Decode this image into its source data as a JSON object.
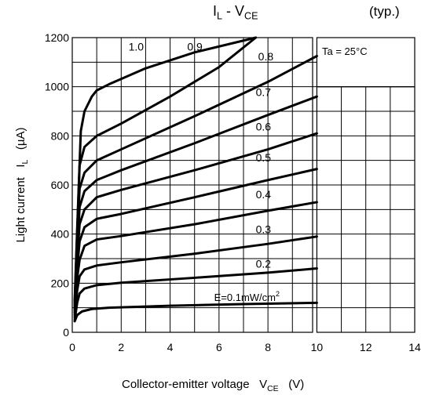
{
  "chart_data": {
    "type": "line",
    "title": "IL - VCE",
    "title_parts": {
      "I": "I",
      "L": "L",
      "sep": " - V",
      "CE": "CE"
    },
    "subtitle": "(typ.)",
    "condition": "Ta = 25°C",
    "xlabel": "Collector-emitter voltage",
    "xlabel_parts": {
      "text": "Collector-emitter voltage",
      "V": "V",
      "CE": "CE",
      "unit": "(V)"
    },
    "ylabel": "Light current",
    "ylabel_parts": {
      "text": "Light current",
      "I": "I",
      "L": "L",
      "unit": "(µA)"
    },
    "xlim": [
      0,
      14
    ],
    "ylim": [
      0,
      1200
    ],
    "x_ticks": [
      "0",
      "2",
      "4",
      "6",
      "8",
      "10",
      "12",
      "14"
    ],
    "y_ticks": [
      "0",
      "200",
      "400",
      "600",
      "800",
      "1000",
      "1200"
    ],
    "grid": true,
    "series": [
      {
        "name": "E=0.1mW/cm2",
        "label": "E=0.1mW/cm",
        "label_sup": "2",
        "x": [
          0.1,
          0.2,
          0.4,
          0.8,
          1.5,
          4,
          7,
          10
        ],
        "y": [
          45,
          70,
          85,
          95,
          100,
          108,
          115,
          120
        ]
      },
      {
        "name": "0.2",
        "label": "0.2",
        "x": [
          0.1,
          0.2,
          0.3,
          0.5,
          1,
          2,
          5,
          8,
          10
        ],
        "y": [
          50,
          120,
          158,
          178,
          192,
          202,
          222,
          243,
          260
        ]
      },
      {
        "name": "0.3",
        "label": "0.3",
        "x": [
          0.1,
          0.2,
          0.3,
          0.5,
          1,
          2,
          5,
          8,
          10
        ],
        "y": [
          60,
          170,
          228,
          256,
          272,
          285,
          320,
          360,
          390
        ]
      },
      {
        "name": "0.4",
        "label": "0.4",
        "x": [
          0.1,
          0.2,
          0.3,
          0.5,
          1,
          2,
          5,
          8,
          10
        ],
        "y": [
          70,
          220,
          295,
          352,
          378,
          392,
          440,
          495,
          530
        ]
      },
      {
        "name": "0.5",
        "label": "0.5",
        "x": [
          0.1,
          0.2,
          0.3,
          0.5,
          1,
          2,
          5,
          8,
          10
        ],
        "y": [
          80,
          260,
          370,
          428,
          462,
          482,
          550,
          620,
          665
        ]
      },
      {
        "name": "0.6",
        "label": "0.6",
        "x": [
          0.1,
          0.2,
          0.3,
          0.5,
          1,
          2,
          5,
          8,
          10
        ],
        "y": [
          90,
          300,
          440,
          500,
          550,
          580,
          660,
          745,
          810
        ]
      },
      {
        "name": "0.7",
        "label": "0.7",
        "x": [
          0.1,
          0.2,
          0.3,
          0.5,
          1,
          2,
          5,
          8,
          10
        ],
        "y": [
          100,
          330,
          510,
          575,
          620,
          660,
          770,
          885,
          960
        ]
      },
      {
        "name": "0.8",
        "label": "0.8",
        "x": [
          0.1,
          0.2,
          0.3,
          0.5,
          1,
          2,
          5,
          8,
          10
        ],
        "y": [
          110,
          380,
          585,
          650,
          700,
          745,
          880,
          1020,
          1125
        ]
      },
      {
        "name": "0.9",
        "label": "0.9",
        "x": [
          0.1,
          0.2,
          0.3,
          0.5,
          1,
          2,
          4,
          6,
          7.5
        ],
        "y": [
          120,
          400,
          680,
          755,
          800,
          850,
          960,
          1080,
          1200
        ]
      },
      {
        "name": "1.0",
        "label": "1.0",
        "x": [
          0.1,
          0.2,
          0.35,
          0.5,
          0.8,
          1,
          1.5,
          3,
          5,
          7.5
        ],
        "y": [
          130,
          420,
          820,
          900,
          960,
          985,
          1010,
          1075,
          1140,
          1200
        ]
      }
    ]
  }
}
